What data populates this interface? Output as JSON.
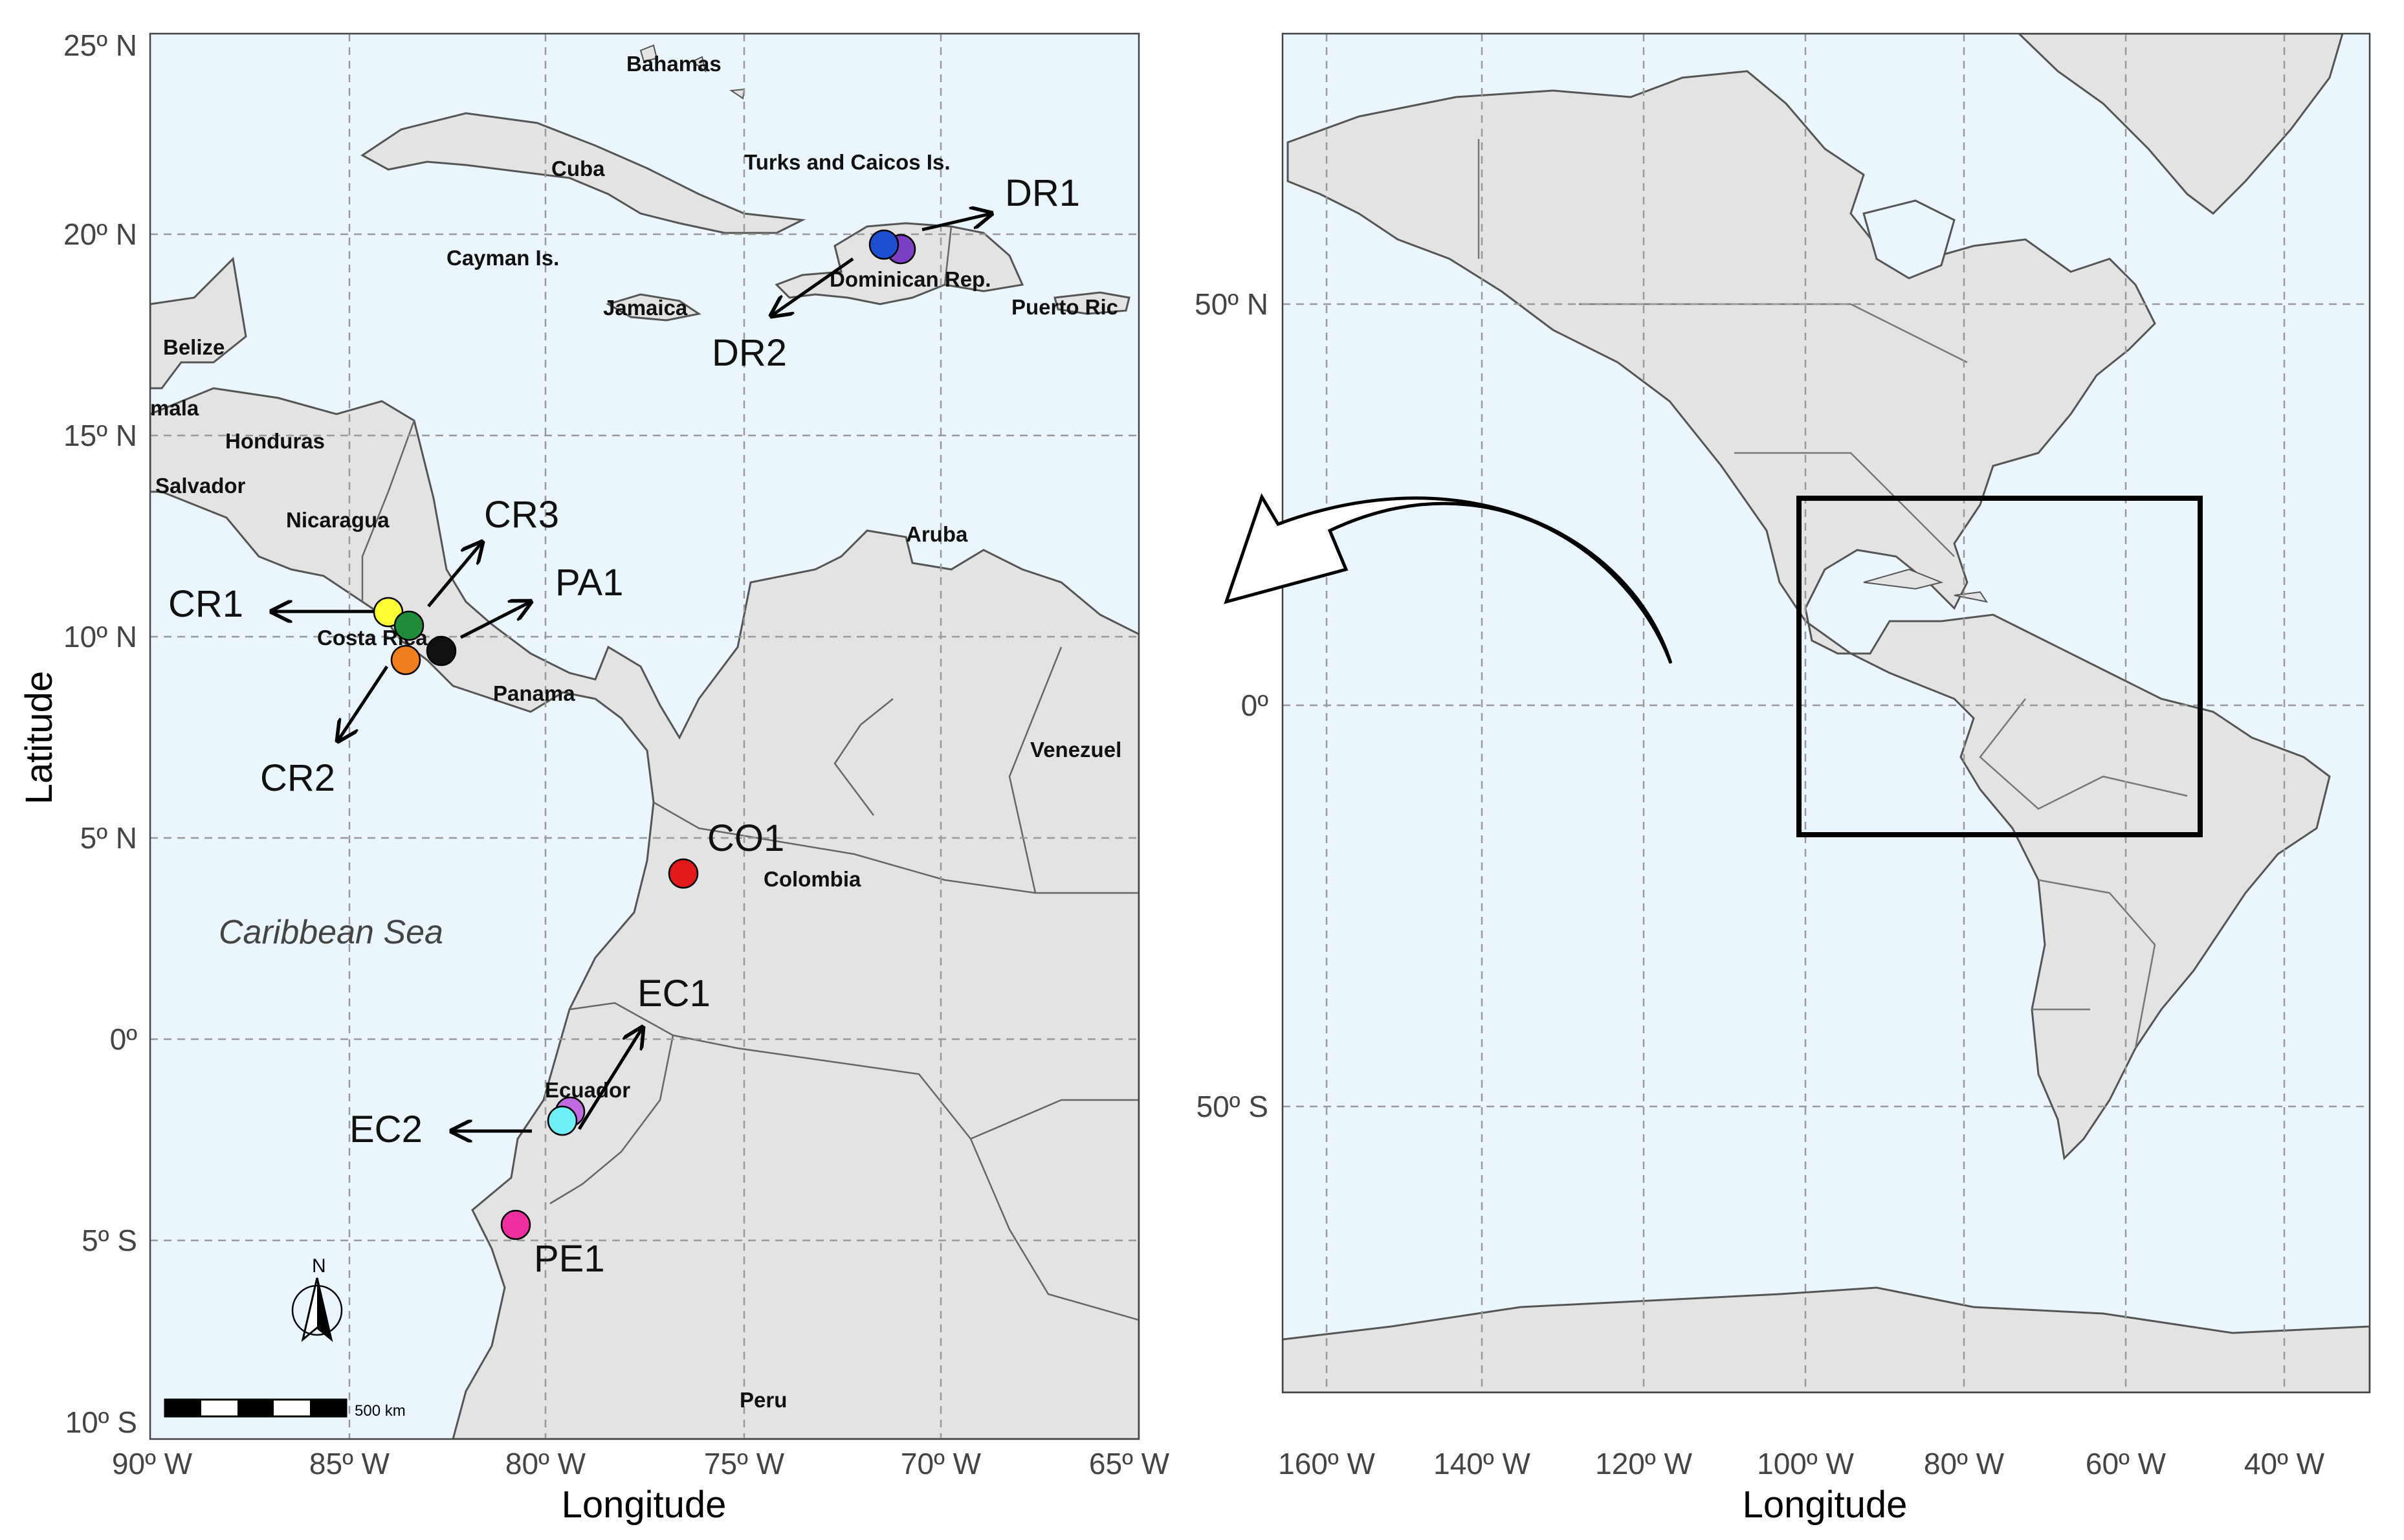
{
  "left_panel": {
    "x_axis": {
      "label": "Longitude",
      "ticks": [
        "90º W",
        "85º W",
        "80º W",
        "75º W",
        "70º W",
        "65º W"
      ]
    },
    "y_axis": {
      "label": "Latitude",
      "ticks": [
        "25º N",
        "20º N",
        "15º N",
        "10º N",
        "5º N",
        "0º",
        "5º S",
        "10º S"
      ]
    },
    "countries": [
      "Bahamas",
      "Cuba",
      "Turks and Caicos Is.",
      "Cayman Is.",
      "Jamaica",
      "Dominican Rep.",
      "Puerto Ric",
      "Belize",
      "mala",
      "Honduras",
      "Salvador",
      "Nicaragua",
      "Costa Rica",
      "Panama",
      "Aruba",
      "Venezuel",
      "Colombia",
      "Ecuador",
      "Peru"
    ],
    "sea_label": "Caribbean Sea",
    "sites": [
      {
        "code": "DR1",
        "color": "#7b3fc4"
      },
      {
        "code": "DR2",
        "color": "#1f4fd1"
      },
      {
        "code": "CR1",
        "color": "#ffff33"
      },
      {
        "code": "CR3",
        "color": "#1e8c3a"
      },
      {
        "code": "PA1",
        "color": "#111111"
      },
      {
        "code": "CR2",
        "color": "#f07f1e"
      },
      {
        "code": "CO1",
        "color": "#e31a1c"
      },
      {
        "code": "EC1",
        "color": "#c06be0"
      },
      {
        "code": "EC2",
        "color": "#6ff0f7"
      },
      {
        "code": "PE1",
        "color": "#ef2fa0"
      }
    ],
    "north_arrow": "N",
    "scale_bar": "500 km"
  },
  "right_panel": {
    "x_axis": {
      "label": "Longitude",
      "ticks": [
        "160º W",
        "140º W",
        "120º W",
        "100º W",
        "80º W",
        "60º W",
        "40º W"
      ]
    },
    "y_axis": {
      "ticks": [
        "50º N",
        "0º",
        "50º S"
      ]
    }
  },
  "colors": {
    "ocean": "#eaf5fc",
    "land": "#e3e3e3",
    "border": "#555555",
    "grid": "#9a9a9a"
  }
}
